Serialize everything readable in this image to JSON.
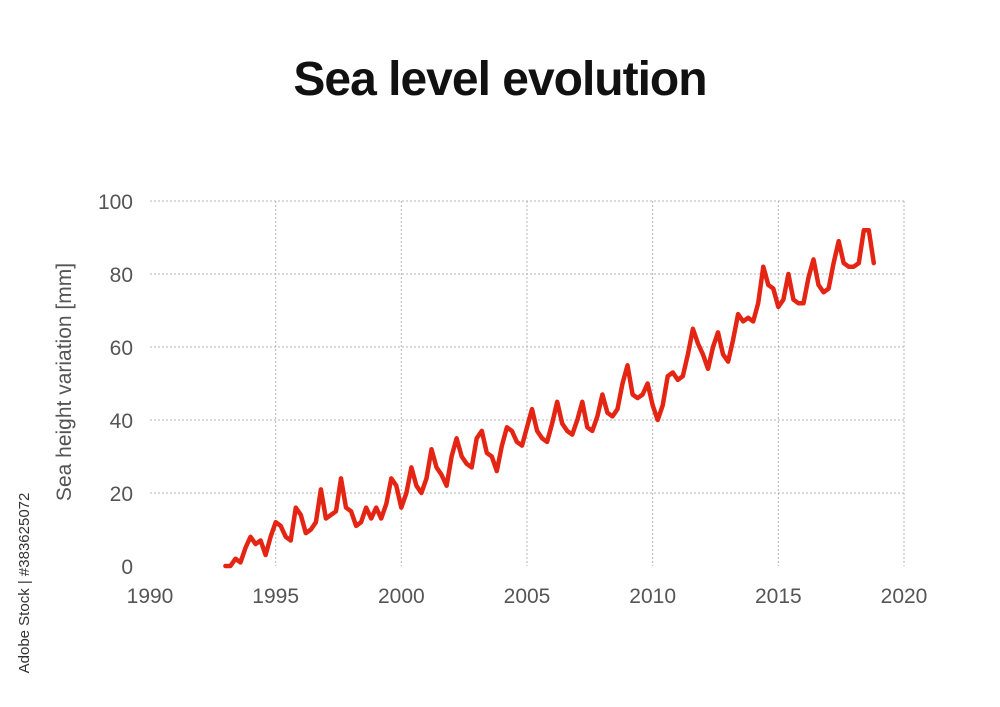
{
  "chart_data": {
    "type": "line",
    "title": "Sea level evolution",
    "xlabel": "",
    "ylabel": "Sea height variation [mm]",
    "xlim": [
      1990,
      2020
    ],
    "ylim": [
      0,
      100
    ],
    "x_ticks": [
      1990,
      1995,
      2000,
      2005,
      2010,
      2015,
      2020
    ],
    "y_ticks": [
      0,
      20,
      40,
      60,
      80,
      100
    ],
    "grid": true,
    "series_color": "#e52514",
    "series": [
      {
        "points": [
          [
            1993.0,
            0
          ],
          [
            1993.2,
            0
          ],
          [
            1993.4,
            2
          ],
          [
            1993.6,
            1
          ],
          [
            1993.8,
            5
          ],
          [
            1994.0,
            8
          ],
          [
            1994.2,
            6
          ],
          [
            1994.4,
            7
          ],
          [
            1994.6,
            3
          ],
          [
            1994.8,
            8
          ],
          [
            1995.0,
            12
          ],
          [
            1995.2,
            11
          ],
          [
            1995.4,
            8
          ],
          [
            1995.6,
            7
          ],
          [
            1995.8,
            16
          ],
          [
            1996.0,
            14
          ],
          [
            1996.2,
            9
          ],
          [
            1996.4,
            10
          ],
          [
            1996.6,
            12
          ],
          [
            1996.8,
            21
          ],
          [
            1997.0,
            13
          ],
          [
            1997.2,
            14
          ],
          [
            1997.4,
            15
          ],
          [
            1997.6,
            24
          ],
          [
            1997.8,
            16
          ],
          [
            1998.0,
            15
          ],
          [
            1998.2,
            11
          ],
          [
            1998.4,
            12
          ],
          [
            1998.6,
            16
          ],
          [
            1998.8,
            13
          ],
          [
            1999.0,
            16
          ],
          [
            1999.2,
            13
          ],
          [
            1999.4,
            17
          ],
          [
            1999.6,
            24
          ],
          [
            1999.8,
            22
          ],
          [
            2000.0,
            16
          ],
          [
            2000.2,
            20
          ],
          [
            2000.4,
            27
          ],
          [
            2000.6,
            22
          ],
          [
            2000.8,
            20
          ],
          [
            2001.0,
            24
          ],
          [
            2001.2,
            32
          ],
          [
            2001.4,
            27
          ],
          [
            2001.6,
            25
          ],
          [
            2001.8,
            22
          ],
          [
            2002.0,
            30
          ],
          [
            2002.2,
            35
          ],
          [
            2002.4,
            30
          ],
          [
            2002.6,
            28
          ],
          [
            2002.8,
            27
          ],
          [
            2003.0,
            35
          ],
          [
            2003.2,
            37
          ],
          [
            2003.4,
            31
          ],
          [
            2003.6,
            30
          ],
          [
            2003.8,
            26
          ],
          [
            2004.0,
            33
          ],
          [
            2004.2,
            38
          ],
          [
            2004.4,
            37
          ],
          [
            2004.6,
            34
          ],
          [
            2004.8,
            33
          ],
          [
            2005.0,
            38
          ],
          [
            2005.2,
            43
          ],
          [
            2005.4,
            37
          ],
          [
            2005.6,
            35
          ],
          [
            2005.8,
            34
          ],
          [
            2006.0,
            39
          ],
          [
            2006.2,
            45
          ],
          [
            2006.4,
            39
          ],
          [
            2006.6,
            37
          ],
          [
            2006.8,
            36
          ],
          [
            2007.0,
            40
          ],
          [
            2007.2,
            45
          ],
          [
            2007.4,
            38
          ],
          [
            2007.6,
            37
          ],
          [
            2007.8,
            41
          ],
          [
            2008.0,
            47
          ],
          [
            2008.2,
            42
          ],
          [
            2008.4,
            41
          ],
          [
            2008.6,
            43
          ],
          [
            2008.8,
            50
          ],
          [
            2009.0,
            55
          ],
          [
            2009.2,
            47
          ],
          [
            2009.4,
            46
          ],
          [
            2009.6,
            47
          ],
          [
            2009.8,
            50
          ],
          [
            2010.0,
            44
          ],
          [
            2010.2,
            40
          ],
          [
            2010.4,
            44
          ],
          [
            2010.6,
            52
          ],
          [
            2010.8,
            53
          ],
          [
            2011.0,
            51
          ],
          [
            2011.2,
            52
          ],
          [
            2011.4,
            58
          ],
          [
            2011.6,
            65
          ],
          [
            2011.8,
            61
          ],
          [
            2012.0,
            58
          ],
          [
            2012.2,
            54
          ],
          [
            2012.4,
            60
          ],
          [
            2012.6,
            64
          ],
          [
            2012.8,
            58
          ],
          [
            2013.0,
            56
          ],
          [
            2013.2,
            62
          ],
          [
            2013.4,
            69
          ],
          [
            2013.6,
            67
          ],
          [
            2013.8,
            68
          ],
          [
            2014.0,
            67
          ],
          [
            2014.2,
            72
          ],
          [
            2014.4,
            82
          ],
          [
            2014.6,
            77
          ],
          [
            2014.8,
            76
          ],
          [
            2015.0,
            71
          ],
          [
            2015.2,
            73
          ],
          [
            2015.4,
            80
          ],
          [
            2015.6,
            73
          ],
          [
            2015.8,
            72
          ],
          [
            2016.0,
            72
          ],
          [
            2016.2,
            79
          ],
          [
            2016.4,
            84
          ],
          [
            2016.6,
            77
          ],
          [
            2016.8,
            75
          ],
          [
            2017.0,
            76
          ],
          [
            2017.2,
            83
          ],
          [
            2017.4,
            89
          ],
          [
            2017.6,
            83
          ],
          [
            2017.8,
            82
          ],
          [
            2018.0,
            82
          ],
          [
            2018.2,
            83
          ],
          [
            2018.4,
            92
          ],
          [
            2018.6,
            92
          ],
          [
            2018.8,
            83
          ]
        ]
      }
    ]
  },
  "watermark": "Adobe Stock | #383625072"
}
